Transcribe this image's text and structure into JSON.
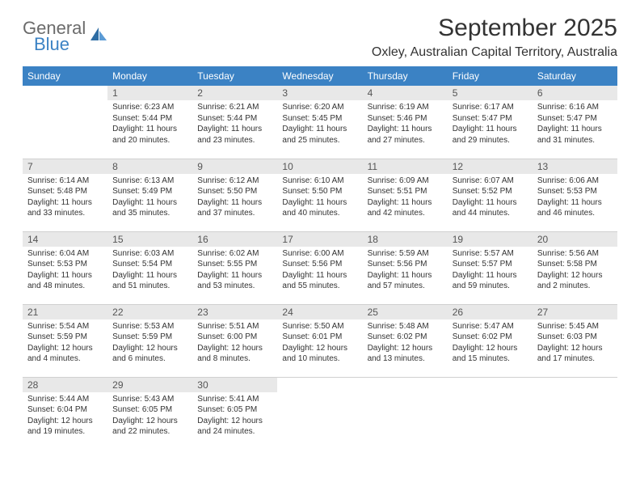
{
  "logo": {
    "top": "General",
    "bottom": "Blue"
  },
  "title": "September 2025",
  "location": "Oxley, Australian Capital Territory, Australia",
  "colors": {
    "header_bg": "#3b82c4",
    "header_text": "#ffffff",
    "daynum_bg": "#e8e8e8",
    "daynum_text": "#555555",
    "body_text": "#333333",
    "row_border": "#d0d0d0",
    "logo_gray": "#6b6b6b",
    "logo_blue": "#3b82c4",
    "page_bg": "#ffffff"
  },
  "typography": {
    "title_fontsize": 30,
    "location_fontsize": 16,
    "header_fontsize": 12,
    "daynum_fontsize": 12,
    "body_fontsize": 10
  },
  "weekdays": [
    "Sunday",
    "Monday",
    "Tuesday",
    "Wednesday",
    "Thursday",
    "Friday",
    "Saturday"
  ],
  "days": [
    {
      "n": 1,
      "col": 1,
      "sunrise": "6:23 AM",
      "sunset": "5:44 PM",
      "daylight": "11 hours and 20 minutes."
    },
    {
      "n": 2,
      "col": 2,
      "sunrise": "6:21 AM",
      "sunset": "5:44 PM",
      "daylight": "11 hours and 23 minutes."
    },
    {
      "n": 3,
      "col": 3,
      "sunrise": "6:20 AM",
      "sunset": "5:45 PM",
      "daylight": "11 hours and 25 minutes."
    },
    {
      "n": 4,
      "col": 4,
      "sunrise": "6:19 AM",
      "sunset": "5:46 PM",
      "daylight": "11 hours and 27 minutes."
    },
    {
      "n": 5,
      "col": 5,
      "sunrise": "6:17 AM",
      "sunset": "5:47 PM",
      "daylight": "11 hours and 29 minutes."
    },
    {
      "n": 6,
      "col": 6,
      "sunrise": "6:16 AM",
      "sunset": "5:47 PM",
      "daylight": "11 hours and 31 minutes."
    },
    {
      "n": 7,
      "col": 0,
      "sunrise": "6:14 AM",
      "sunset": "5:48 PM",
      "daylight": "11 hours and 33 minutes."
    },
    {
      "n": 8,
      "col": 1,
      "sunrise": "6:13 AM",
      "sunset": "5:49 PM",
      "daylight": "11 hours and 35 minutes."
    },
    {
      "n": 9,
      "col": 2,
      "sunrise": "6:12 AM",
      "sunset": "5:50 PM",
      "daylight": "11 hours and 37 minutes."
    },
    {
      "n": 10,
      "col": 3,
      "sunrise": "6:10 AM",
      "sunset": "5:50 PM",
      "daylight": "11 hours and 40 minutes."
    },
    {
      "n": 11,
      "col": 4,
      "sunrise": "6:09 AM",
      "sunset": "5:51 PM",
      "daylight": "11 hours and 42 minutes."
    },
    {
      "n": 12,
      "col": 5,
      "sunrise": "6:07 AM",
      "sunset": "5:52 PM",
      "daylight": "11 hours and 44 minutes."
    },
    {
      "n": 13,
      "col": 6,
      "sunrise": "6:06 AM",
      "sunset": "5:53 PM",
      "daylight": "11 hours and 46 minutes."
    },
    {
      "n": 14,
      "col": 0,
      "sunrise": "6:04 AM",
      "sunset": "5:53 PM",
      "daylight": "11 hours and 48 minutes."
    },
    {
      "n": 15,
      "col": 1,
      "sunrise": "6:03 AM",
      "sunset": "5:54 PM",
      "daylight": "11 hours and 51 minutes."
    },
    {
      "n": 16,
      "col": 2,
      "sunrise": "6:02 AM",
      "sunset": "5:55 PM",
      "daylight": "11 hours and 53 minutes."
    },
    {
      "n": 17,
      "col": 3,
      "sunrise": "6:00 AM",
      "sunset": "5:56 PM",
      "daylight": "11 hours and 55 minutes."
    },
    {
      "n": 18,
      "col": 4,
      "sunrise": "5:59 AM",
      "sunset": "5:56 PM",
      "daylight": "11 hours and 57 minutes."
    },
    {
      "n": 19,
      "col": 5,
      "sunrise": "5:57 AM",
      "sunset": "5:57 PM",
      "daylight": "11 hours and 59 minutes."
    },
    {
      "n": 20,
      "col": 6,
      "sunrise": "5:56 AM",
      "sunset": "5:58 PM",
      "daylight": "12 hours and 2 minutes."
    },
    {
      "n": 21,
      "col": 0,
      "sunrise": "5:54 AM",
      "sunset": "5:59 PM",
      "daylight": "12 hours and 4 minutes."
    },
    {
      "n": 22,
      "col": 1,
      "sunrise": "5:53 AM",
      "sunset": "5:59 PM",
      "daylight": "12 hours and 6 minutes."
    },
    {
      "n": 23,
      "col": 2,
      "sunrise": "5:51 AM",
      "sunset": "6:00 PM",
      "daylight": "12 hours and 8 minutes."
    },
    {
      "n": 24,
      "col": 3,
      "sunrise": "5:50 AM",
      "sunset": "6:01 PM",
      "daylight": "12 hours and 10 minutes."
    },
    {
      "n": 25,
      "col": 4,
      "sunrise": "5:48 AM",
      "sunset": "6:02 PM",
      "daylight": "12 hours and 13 minutes."
    },
    {
      "n": 26,
      "col": 5,
      "sunrise": "5:47 AM",
      "sunset": "6:02 PM",
      "daylight": "12 hours and 15 minutes."
    },
    {
      "n": 27,
      "col": 6,
      "sunrise": "5:45 AM",
      "sunset": "6:03 PM",
      "daylight": "12 hours and 17 minutes."
    },
    {
      "n": 28,
      "col": 0,
      "sunrise": "5:44 AM",
      "sunset": "6:04 PM",
      "daylight": "12 hours and 19 minutes."
    },
    {
      "n": 29,
      "col": 1,
      "sunrise": "5:43 AM",
      "sunset": "6:05 PM",
      "daylight": "12 hours and 22 minutes."
    },
    {
      "n": 30,
      "col": 2,
      "sunrise": "5:41 AM",
      "sunset": "6:05 PM",
      "daylight": "12 hours and 24 minutes."
    }
  ],
  "labels": {
    "sunrise": "Sunrise:",
    "sunset": "Sunset:",
    "daylight": "Daylight:"
  }
}
